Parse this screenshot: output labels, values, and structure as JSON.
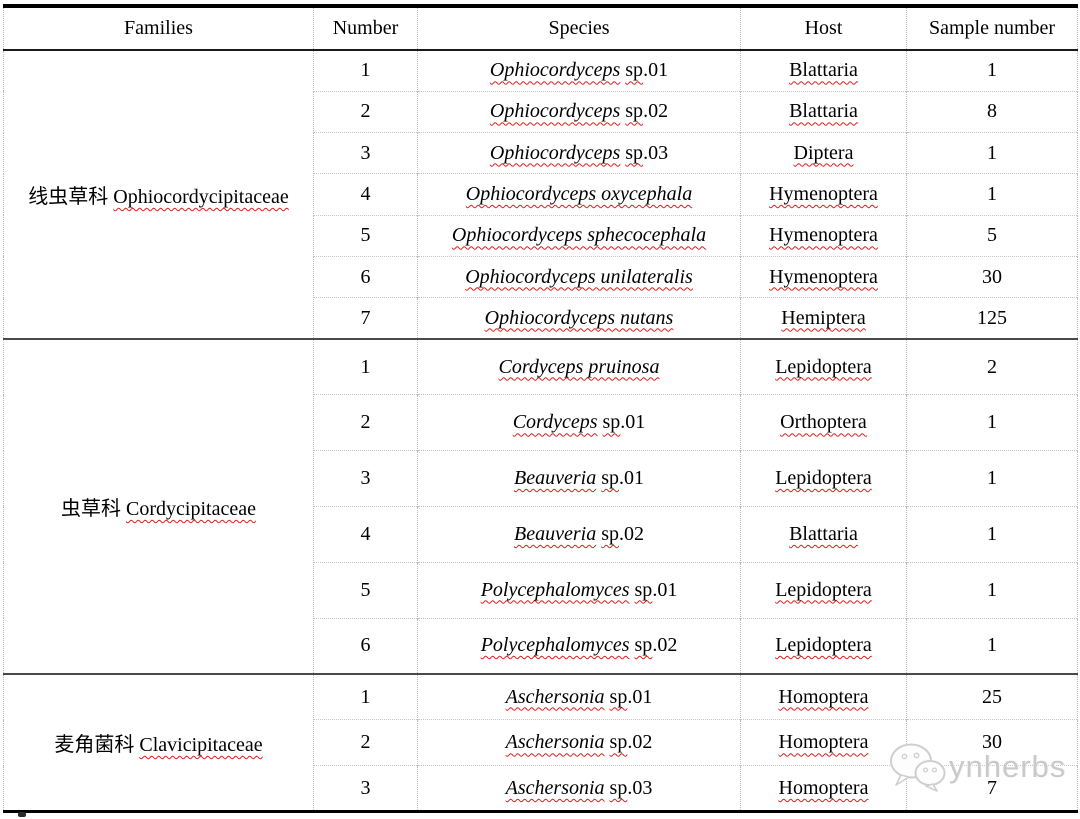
{
  "table": {
    "headers": [
      "Families",
      "Number",
      "Species",
      "Host",
      "Sample number"
    ],
    "groups": [
      {
        "family_cn": "线虫草科",
        "family_latin": "Ophiocordycipitaceae",
        "rows": [
          {
            "number": "1",
            "species_italic": "Ophiocordyceps",
            "species_roman": "sp.01",
            "host": "Blattaria",
            "sample": "1"
          },
          {
            "number": "2",
            "species_italic": "Ophiocordyceps",
            "species_roman": "sp.02",
            "host": "Blattaria",
            "sample": "8"
          },
          {
            "number": "3",
            "species_italic": "Ophiocordyceps",
            "species_roman": "sp.03",
            "host": "Diptera",
            "sample": "1"
          },
          {
            "number": "4",
            "species_italic": "Ophiocordyceps oxycephala",
            "species_roman": "",
            "host": "Hymenoptera",
            "sample": "1"
          },
          {
            "number": "5",
            "species_italic": "Ophiocordyceps sphecocephala",
            "species_roman": "",
            "host": "Hymenoptera",
            "sample": "5"
          },
          {
            "number": "6",
            "species_italic": "Ophiocordyceps unilateralis",
            "species_roman": "",
            "host": "Hymenoptera",
            "sample": "30"
          },
          {
            "number": "7",
            "species_italic": "Ophiocordyceps nutans",
            "species_roman": "",
            "host": "Hemiptera",
            "sample": "125"
          }
        ]
      },
      {
        "family_cn": "虫草科",
        "family_latin": "Cordycipitaceae",
        "rows": [
          {
            "number": "1",
            "species_italic": "Cordyceps pruinosa",
            "species_roman": "",
            "host": "Lepidoptera",
            "sample": "2"
          },
          {
            "number": "2",
            "species_italic": "Cordyceps",
            "species_roman": "sp.01",
            "host": "Orthoptera",
            "sample": "1"
          },
          {
            "number": "3",
            "species_italic": "Beauveria",
            "species_roman": "sp.01",
            "host": "Lepidoptera",
            "sample": "1"
          },
          {
            "number": "4",
            "species_italic": "Beauveria",
            "species_roman": "sp.02",
            "host": "Blattaria",
            "sample": "1"
          },
          {
            "number": "5",
            "species_italic": "Polycephalomyces",
            "species_roman": "sp.01",
            "host": "Lepidoptera",
            "sample": "1"
          },
          {
            "number": "6",
            "species_italic": "Polycephalomyces",
            "species_roman": "sp.02",
            "host": "Lepidoptera",
            "sample": "1"
          }
        ]
      },
      {
        "family_cn": "麦角菌科",
        "family_latin": "Clavicipitaceae",
        "rows": [
          {
            "number": "1",
            "species_italic": "Aschersonia",
            "species_roman": "sp.01",
            "host": "Homoptera",
            "sample": "25"
          },
          {
            "number": "2",
            "species_italic": "Aschersonia",
            "species_roman": "sp.02",
            "host": "Homoptera",
            "sample": "30"
          },
          {
            "number": "3",
            "species_italic": "Aschersonia",
            "species_roman": "sp.03",
            "host": "Homoptera",
            "sample": "7"
          }
        ]
      }
    ]
  },
  "watermark": {
    "label": "ynherbs",
    "icon": "wechat-bubbles-icon"
  },
  "colors": {
    "text": "#000000",
    "outer_border": "#000000",
    "group_divider": "#4a4a4a",
    "grid_dotted": "#bdbdbd",
    "spellcheck_red": "#e01b1b",
    "watermark_gray": "#c9c9c9"
  }
}
